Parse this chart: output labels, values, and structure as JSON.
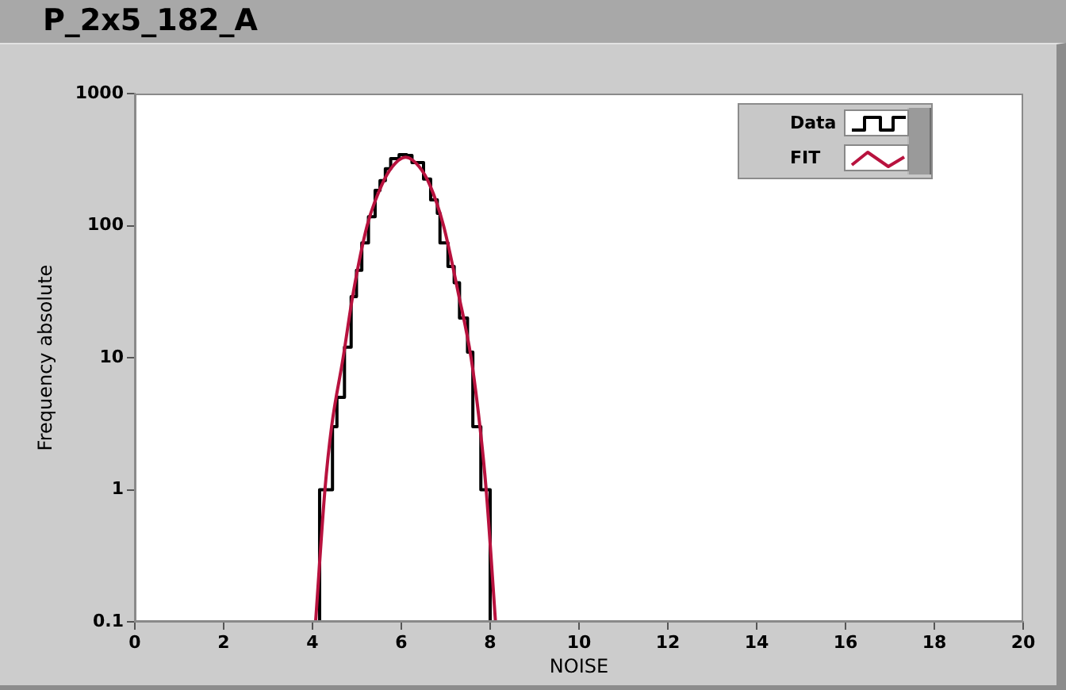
{
  "chart_data": {
    "type": "step",
    "title": "P_2x5_182_A",
    "xlabel": "NOISE",
    "ylabel": "Frequency absolute",
    "xlim": [
      0,
      20
    ],
    "xticks": [
      0,
      2,
      4,
      6,
      8,
      10,
      12,
      14,
      16,
      18,
      20
    ],
    "ylim": [
      0.1,
      1000
    ],
    "yticks": [
      0.1,
      1,
      10,
      100,
      1000
    ],
    "log": true,
    "legend": "top right",
    "series": [
      {
        "name": "Data",
        "type": "step",
        "color": "#000000",
        "x": [
          4.16,
          4.16,
          4.45,
          4.55,
          4.72,
          4.87,
          4.99,
          5.11,
          5.26,
          5.41,
          5.52,
          5.64,
          5.76,
          5.95,
          6.12,
          6.24,
          6.5,
          6.66,
          6.81,
          6.87,
          7.05,
          7.19,
          7.31,
          7.49,
          7.61,
          7.79,
          8.0
        ],
        "values": [
          0.1,
          1,
          3,
          5,
          12,
          29,
          46,
          74,
          117,
          185,
          219,
          270,
          322,
          345,
          340,
          300,
          225,
          157,
          124,
          74,
          49,
          37,
          20,
          11,
          3,
          1,
          0.1
        ]
      },
      {
        "name": "FIT",
        "type": "line",
        "color": "#b8123e",
        "x": [
          4.07,
          4.28,
          4.43,
          4.69,
          4.91,
          5.23,
          5.55,
          5.8,
          6.1,
          6.4,
          6.65,
          6.95,
          7.29,
          7.57,
          7.77,
          7.91,
          8.12
        ],
        "values": [
          0.1,
          1,
          3,
          10,
          30,
          100,
          200,
          280,
          330,
          280,
          200,
          100,
          30,
          10,
          3,
          1,
          0.1
        ]
      }
    ]
  }
}
